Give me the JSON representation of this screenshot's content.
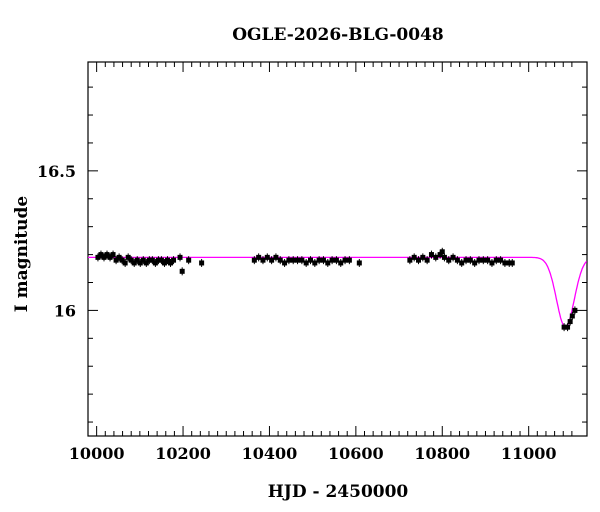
{
  "chart_data": {
    "type": "scatter",
    "title": "OGLE-2026-BLG-0048",
    "xlabel": "HJD - 2450000",
    "ylabel": "I magnitude",
    "xlim": [
      9980,
      11135
    ],
    "ylim": [
      16.89,
      15.55
    ],
    "y_inverted": true,
    "grid": false,
    "x_ticks": [
      10000,
      10200,
      10400,
      10600,
      10800,
      11000
    ],
    "x_tick_labels": [
      "10000",
      "10200",
      "10400",
      "10600",
      "10800",
      "11000"
    ],
    "y_ticks": [
      16,
      16.5
    ],
    "y_tick_labels": [
      "16",
      "16.5"
    ],
    "model": {
      "color": "#ff00ff",
      "baseline_mag": 16.19,
      "peak_mag": 15.94,
      "t0": 11085,
      "sigma_days": 20.5
    },
    "observations": {
      "color": "#000000",
      "points": [
        [
          10003,
          16.19
        ],
        [
          10010,
          16.2
        ],
        [
          10017,
          16.19
        ],
        [
          10024,
          16.2
        ],
        [
          10031,
          16.19
        ],
        [
          10038,
          16.2
        ],
        [
          10045,
          16.18
        ],
        [
          10052,
          16.19
        ],
        [
          10059,
          16.18
        ],
        [
          10066,
          16.17
        ],
        [
          10073,
          16.19
        ],
        [
          10080,
          16.18
        ],
        [
          10087,
          16.17
        ],
        [
          10094,
          16.18
        ],
        [
          10101,
          16.17
        ],
        [
          10108,
          16.18
        ],
        [
          10115,
          16.17
        ],
        [
          10122,
          16.18
        ],
        [
          10129,
          16.18
        ],
        [
          10136,
          16.17
        ],
        [
          10143,
          16.18
        ],
        [
          10150,
          16.18
        ],
        [
          10157,
          16.17
        ],
        [
          10164,
          16.18
        ],
        [
          10171,
          16.17
        ],
        [
          10178,
          16.18
        ],
        [
          10193,
          16.19
        ],
        [
          10198,
          16.14
        ],
        [
          10213,
          16.18
        ],
        [
          10243,
          16.17
        ],
        [
          10365,
          16.18
        ],
        [
          10375,
          16.19
        ],
        [
          10385,
          16.18
        ],
        [
          10395,
          16.19
        ],
        [
          10405,
          16.18
        ],
        [
          10415,
          16.19
        ],
        [
          10425,
          16.18
        ],
        [
          10435,
          16.17
        ],
        [
          10445,
          16.18
        ],
        [
          10455,
          16.18
        ],
        [
          10465,
          16.18
        ],
        [
          10475,
          16.18
        ],
        [
          10485,
          16.17
        ],
        [
          10495,
          16.18
        ],
        [
          10505,
          16.17
        ],
        [
          10515,
          16.18
        ],
        [
          10525,
          16.18
        ],
        [
          10535,
          16.17
        ],
        [
          10545,
          16.18
        ],
        [
          10555,
          16.18
        ],
        [
          10565,
          16.17
        ],
        [
          10575,
          16.18
        ],
        [
          10585,
          16.18
        ],
        [
          10608,
          16.17
        ],
        [
          10725,
          16.18
        ],
        [
          10735,
          16.19
        ],
        [
          10745,
          16.18
        ],
        [
          10755,
          16.19
        ],
        [
          10765,
          16.18
        ],
        [
          10775,
          16.2
        ],
        [
          10785,
          16.19
        ],
        [
          10795,
          16.2
        ],
        [
          10800,
          16.21
        ],
        [
          10805,
          16.19
        ],
        [
          10815,
          16.18
        ],
        [
          10825,
          16.19
        ],
        [
          10835,
          16.18
        ],
        [
          10845,
          16.17
        ],
        [
          10855,
          16.18
        ],
        [
          10865,
          16.18
        ],
        [
          10875,
          16.17
        ],
        [
          10885,
          16.18
        ],
        [
          10895,
          16.18
        ],
        [
          10905,
          16.18
        ],
        [
          10915,
          16.17
        ],
        [
          10925,
          16.18
        ],
        [
          10935,
          16.18
        ],
        [
          10945,
          16.17
        ],
        [
          10955,
          16.17
        ],
        [
          10962,
          16.17
        ],
        [
          11082,
          15.94
        ],
        [
          11090,
          15.94
        ],
        [
          11096,
          15.96
        ],
        [
          11101,
          15.98
        ],
        [
          11107,
          16.0
        ]
      ]
    }
  }
}
